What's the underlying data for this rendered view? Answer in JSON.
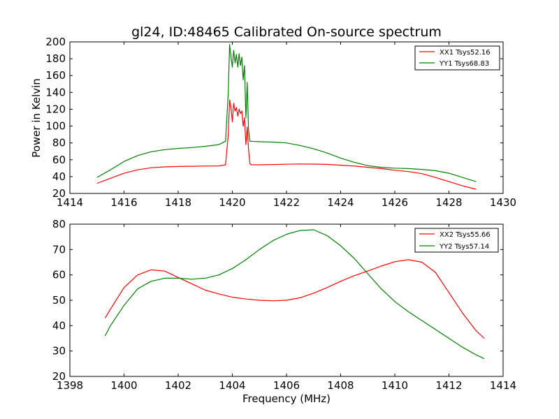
{
  "chart_data": [
    {
      "type": "line",
      "title": "gl24, ID:48465 Calibrated On-source spectrum",
      "xlabel": "",
      "ylabel": "Power in Kelvin",
      "xlim": [
        1414,
        1430
      ],
      "ylim": [
        20,
        200
      ],
      "xticks": [
        "1414",
        "1416",
        "1418",
        "1420",
        "1422",
        "1424",
        "1426",
        "1428",
        "1430"
      ],
      "yticks": [
        "20",
        "40",
        "60",
        "80",
        "100",
        "120",
        "140",
        "160",
        "180",
        "200"
      ],
      "legend_position": "top-right",
      "series": [
        {
          "name": "XX1 Tsys52.16",
          "color": "#ff0000",
          "x": [
            1415.0,
            1415.5,
            1416.0,
            1416.5,
            1417.0,
            1417.5,
            1418.0,
            1418.5,
            1419.0,
            1419.5,
            1419.75,
            1419.85,
            1419.9,
            1419.95,
            1420.0,
            1420.05,
            1420.1,
            1420.15,
            1420.2,
            1420.25,
            1420.3,
            1420.35,
            1420.4,
            1420.45,
            1420.5,
            1420.55,
            1420.6,
            1420.65,
            1420.7,
            1421.0,
            1421.5,
            1422.0,
            1422.5,
            1423.0,
            1423.5,
            1424.0,
            1424.5,
            1425.0,
            1425.5,
            1426.0,
            1426.5,
            1427.0,
            1427.5,
            1428.0,
            1428.5,
            1429.0
          ],
          "y": [
            32,
            38,
            44,
            48,
            50.5,
            51.5,
            52,
            52.3,
            52.5,
            52.7,
            54,
            90,
            131,
            122,
            105,
            127,
            118,
            122,
            112,
            120,
            115,
            118,
            100,
            110,
            78,
            99,
            72,
            55,
            54,
            54,
            54.3,
            54.7,
            55,
            54.8,
            54.5,
            53.5,
            52.5,
            51,
            49.5,
            47.5,
            46,
            43.5,
            39,
            34,
            29,
            25
          ]
        },
        {
          "name": "YY1 Tsys68.83",
          "color": "#008000",
          "x": [
            1415.0,
            1415.5,
            1416.0,
            1416.5,
            1417.0,
            1417.5,
            1418.0,
            1418.5,
            1419.0,
            1419.5,
            1419.75,
            1419.85,
            1419.9,
            1419.95,
            1420.0,
            1420.05,
            1420.1,
            1420.15,
            1420.2,
            1420.25,
            1420.3,
            1420.35,
            1420.4,
            1420.45,
            1420.5,
            1420.55,
            1420.6,
            1420.65,
            1420.7,
            1421.0,
            1421.5,
            1422.0,
            1422.5,
            1423.0,
            1423.5,
            1424.0,
            1424.5,
            1425.0,
            1425.5,
            1426.0,
            1426.5,
            1427.0,
            1427.5,
            1428.0,
            1428.5,
            1429.0
          ],
          "y": [
            39,
            48,
            58,
            65,
            69.5,
            72,
            73.5,
            74.5,
            76,
            78,
            82,
            140,
            197,
            182,
            170,
            190,
            175,
            185,
            170,
            186,
            172,
            182,
            155,
            172,
            110,
            152,
            95,
            82,
            82,
            81.5,
            81,
            80,
            77,
            73,
            68,
            62,
            57,
            53,
            51,
            50,
            49.5,
            48.5,
            47,
            44,
            39,
            34
          ]
        }
      ]
    },
    {
      "type": "line",
      "title": "",
      "xlabel": "Frequency (MHz)",
      "ylabel": "",
      "xlim": [
        1398,
        1414
      ],
      "ylim": [
        20,
        80
      ],
      "xticks": [
        "1398",
        "1400",
        "1402",
        "1404",
        "1406",
        "1408",
        "1410",
        "1412",
        "1414"
      ],
      "yticks": [
        "20",
        "30",
        "40",
        "50",
        "60",
        "70",
        "80"
      ],
      "legend_position": "top-right",
      "series": [
        {
          "name": "XX2 Tsys55.66",
          "color": "#ff0000",
          "x": [
            1399.3,
            1399.5,
            1400.0,
            1400.5,
            1401.0,
            1401.5,
            1402.0,
            1402.5,
            1403.0,
            1403.5,
            1404.0,
            1404.5,
            1405.0,
            1405.5,
            1406.0,
            1406.5,
            1407.0,
            1407.5,
            1408.0,
            1408.5,
            1409.0,
            1409.5,
            1410.0,
            1410.5,
            1411.0,
            1411.5,
            1412.0,
            1412.5,
            1413.0,
            1413.3
          ],
          "y": [
            43,
            46.5,
            55,
            60,
            62,
            61.5,
            59,
            56.5,
            54,
            52.5,
            51.2,
            50.5,
            50,
            49.8,
            50,
            51,
            52.8,
            55,
            57.5,
            59.7,
            61.5,
            63.5,
            65.2,
            66,
            65,
            61,
            53,
            45,
            38,
            35
          ]
        },
        {
          "name": "YY2 Tsys57.14",
          "color": "#008000",
          "x": [
            1399.3,
            1399.5,
            1400.0,
            1400.5,
            1401.0,
            1401.5,
            1402.0,
            1402.5,
            1403.0,
            1403.5,
            1404.0,
            1404.5,
            1405.0,
            1405.5,
            1406.0,
            1406.5,
            1407.0,
            1407.5,
            1408.0,
            1408.5,
            1409.0,
            1409.5,
            1410.0,
            1410.5,
            1411.0,
            1411.5,
            1412.0,
            1412.5,
            1413.0,
            1413.3
          ],
          "y": [
            36,
            40,
            48,
            54.5,
            57.5,
            58.7,
            58.7,
            58.3,
            58.7,
            60,
            62.5,
            66,
            70,
            73.5,
            76,
            77.5,
            77.8,
            75.5,
            71.5,
            66.5,
            60.5,
            54.5,
            49.5,
            45.5,
            42,
            38.5,
            35,
            31.5,
            28.5,
            27
          ]
        }
      ]
    }
  ]
}
